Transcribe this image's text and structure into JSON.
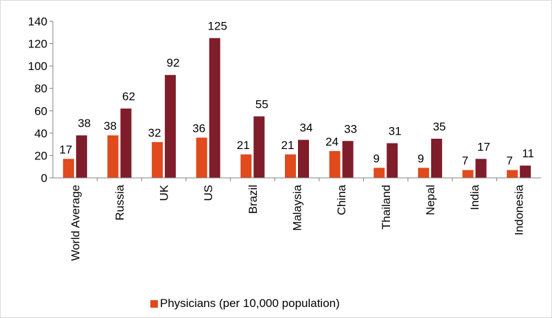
{
  "chart_data": {
    "type": "bar",
    "categories": [
      "World Average",
      "Russia",
      "UK",
      "US",
      "Brazil",
      "Malaysia",
      "China",
      "Thailand",
      "Nepal",
      "India",
      "Indonesia"
    ],
    "series": [
      {
        "name": "Physicians (per 10,000 population)",
        "values": [
          17,
          38,
          32,
          36,
          21,
          21,
          24,
          9,
          9,
          7,
          7
        ],
        "color": "#e04a1c"
      },
      {
        "values": [
          38,
          62,
          92,
          125,
          55,
          34,
          33,
          31,
          35,
          17,
          11
        ],
        "color": "#7f1d2a"
      }
    ],
    "ylim": [
      0,
      140
    ],
    "yticks": [
      0,
      20,
      40,
      60,
      80,
      100,
      120,
      140
    ],
    "grid": false,
    "legend_position": "bottom",
    "data_labels": true
  }
}
